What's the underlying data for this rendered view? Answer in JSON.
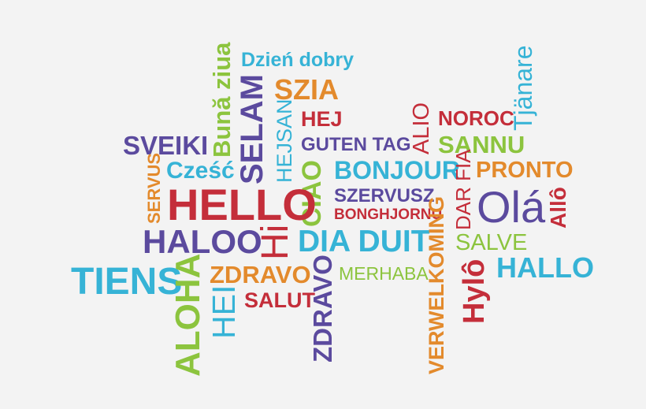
{
  "words": [
    {
      "text": "Bună ziua",
      "color": "#8cc43e"
    },
    {
      "text": "Dzień dobry",
      "color": "#36b3d6"
    },
    {
      "text": "SZIA",
      "color": "#e38a2c"
    },
    {
      "text": "Tjänare",
      "color": "#36b3d6"
    },
    {
      "text": "SELAM",
      "color": "#5b4a9e"
    },
    {
      "text": "HEJSAN",
      "color": "#36b3d6"
    },
    {
      "text": "HEJ",
      "color": "#c42e3a"
    },
    {
      "text": "ALIO",
      "color": "#c42e3a"
    },
    {
      "text": "NOROC",
      "color": "#c42e3a"
    },
    {
      "text": "SVEIKI",
      "color": "#5b4a9e"
    },
    {
      "text": "GUTEN TAG",
      "color": "#5b4a9e"
    },
    {
      "text": "SANNU",
      "color": "#8cc43e"
    },
    {
      "text": "SERVUS",
      "color": "#e38a2c"
    },
    {
      "text": "Cześć",
      "color": "#36b3d6"
    },
    {
      "text": "CIAO",
      "color": "#8cc43e"
    },
    {
      "text": "BONJOUR",
      "color": "#36b3d6"
    },
    {
      "text": "DAR FIA",
      "color": "#c42e3a"
    },
    {
      "text": "PRONTO",
      "color": "#e38a2c"
    },
    {
      "text": "HELLO",
      "color": "#c42e3a"
    },
    {
      "text": "SZERVUSZ",
      "color": "#5b4a9e"
    },
    {
      "text": "BONGHJORNU",
      "color": "#c42e3a"
    },
    {
      "text": "Olá",
      "color": "#5b4a9e"
    },
    {
      "text": "Allô",
      "color": "#c42e3a"
    },
    {
      "text": "HALOO",
      "color": "#5b4a9e"
    },
    {
      "text": "Hi",
      "color": "#c42e3a"
    },
    {
      "text": "DIA DUIT",
      "color": "#36b3d6"
    },
    {
      "text": "VERWELKOMING",
      "color": "#e38a2c"
    },
    {
      "text": "SALVE",
      "color": "#8cc43e"
    },
    {
      "text": "TIENS",
      "color": "#36b3d6"
    },
    {
      "text": "ALOHA",
      "color": "#8cc43e"
    },
    {
      "text": "ZDRAVO",
      "color": "#e38a2c"
    },
    {
      "text": "MERHABA",
      "color": "#8cc43e"
    },
    {
      "text": "Hylô",
      "color": "#c42e3a"
    },
    {
      "text": "HALLO",
      "color": "#36b3d6"
    },
    {
      "text": "HEI",
      "color": "#36b3d6"
    },
    {
      "text": "SALUT",
      "color": "#c42e3a"
    },
    {
      "text": "ZDRAVO",
      "color": "#5b4a9e"
    }
  ]
}
